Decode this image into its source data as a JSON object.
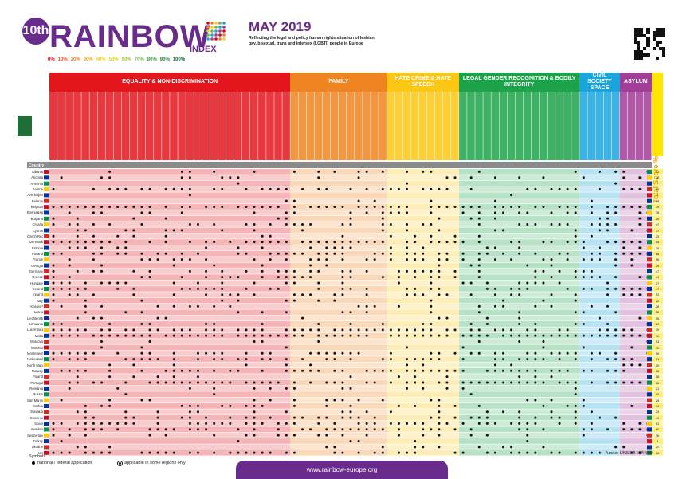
{
  "header": {
    "badge": "10th",
    "word": "RAINBOW",
    "index_label": "INDEX",
    "month": "MAY 2019",
    "subtitle": "Reflecting the legal and policy human rights situation of lesbian, gay, bisexual, trans and intersex (LGBTI) people in Europe"
  },
  "scale": [
    {
      "label": "0%",
      "color": "#e3001b"
    },
    {
      "label": "10%",
      "color": "#ea4e22"
    },
    {
      "label": "20%",
      "color": "#f07e22"
    },
    {
      "label": "30%",
      "color": "#f6a21f"
    },
    {
      "label": "40%",
      "color": "#fccd14"
    },
    {
      "label": "50%",
      "color": "#d5d50f"
    },
    {
      "label": "60%",
      "color": "#a5c53b"
    },
    {
      "label": "70%",
      "color": "#73b54a"
    },
    {
      "label": "80%",
      "color": "#3ea447"
    },
    {
      "label": "90%",
      "color": "#1e8a3b"
    },
    {
      "label": "100%",
      "color": "#0b6b33"
    }
  ],
  "categories": [
    {
      "label": "EQUALITY & NON-DISCRIMINATION",
      "color": "#e3161d",
      "cols": 30
    },
    {
      "label": "FAMILY",
      "color": "#f08421",
      "cols": 12
    },
    {
      "label": "HATE CRIME & HATE SPEECH",
      "color": "#fcc614",
      "cols": 9
    },
    {
      "label": "LEGAL GENDER RECOGNITION & BODILY INTEGRITY",
      "color": "#1ca34a",
      "cols": 15
    },
    {
      "label": "CIVIL SOCIETY SPACE",
      "color": "#1aa6dd",
      "cols": 5
    },
    {
      "label": "ASYLUM",
      "color": "#a23d98",
      "cols": 4
    }
  ],
  "total_label": "Total Score %",
  "country_header": "Country",
  "countries": [
    "Albania",
    "Andorra",
    "Armenia",
    "Austria",
    "Azerbaijan",
    "Belarus",
    "Belgium",
    "Bosnia&Herz.",
    "Bulgaria",
    "Croatia",
    "Cyprus",
    "Czech Republic",
    "Denmark",
    "Estonia",
    "Finland",
    "France",
    "Georgia",
    "Germany",
    "Greece",
    "Hungary",
    "Iceland",
    "Ireland",
    "Italy",
    "Kosovo*",
    "Latvia",
    "Liechtenstein",
    "Lithuania",
    "Luxembourg",
    "Malta",
    "Moldova",
    "Monaco",
    "Montenegro",
    "Netherlands",
    "North Macedonia",
    "Norway",
    "Poland",
    "Portugal",
    "Romania",
    "Russia",
    "San Marino",
    "Serbia",
    "Slovakia",
    "Slovenia",
    "Spain",
    "Sweden",
    "Switzerland",
    "Turkey",
    "Ukraine",
    "UK"
  ],
  "scores": [
    "31",
    "28",
    "7",
    "50",
    "5",
    "13",
    "79",
    "38",
    "20",
    "47",
    "37",
    "23",
    "68",
    "38",
    "66",
    "56",
    "29",
    "47",
    "49",
    "27",
    "47",
    "52",
    "22",
    "28",
    "16",
    "18",
    "22",
    "70",
    "90",
    "13",
    "11",
    "56",
    "51",
    "20",
    "68",
    "18",
    "66",
    "21",
    "10",
    "25",
    "33",
    "23",
    "49",
    "61",
    "60",
    "36",
    "4",
    "22",
    "66"
  ],
  "legend": {
    "title": "Symbols:",
    "national": "national / federal application",
    "regional": "applicable in some regions only"
  },
  "note": "*under UNSCR 1244/99",
  "url": "www.rainbow-europe.org",
  "icons": {
    "fsc": "fsc-logo-icon",
    "qr": "qr-code-icon",
    "dots": "rainbow-dot-grid-icon"
  }
}
